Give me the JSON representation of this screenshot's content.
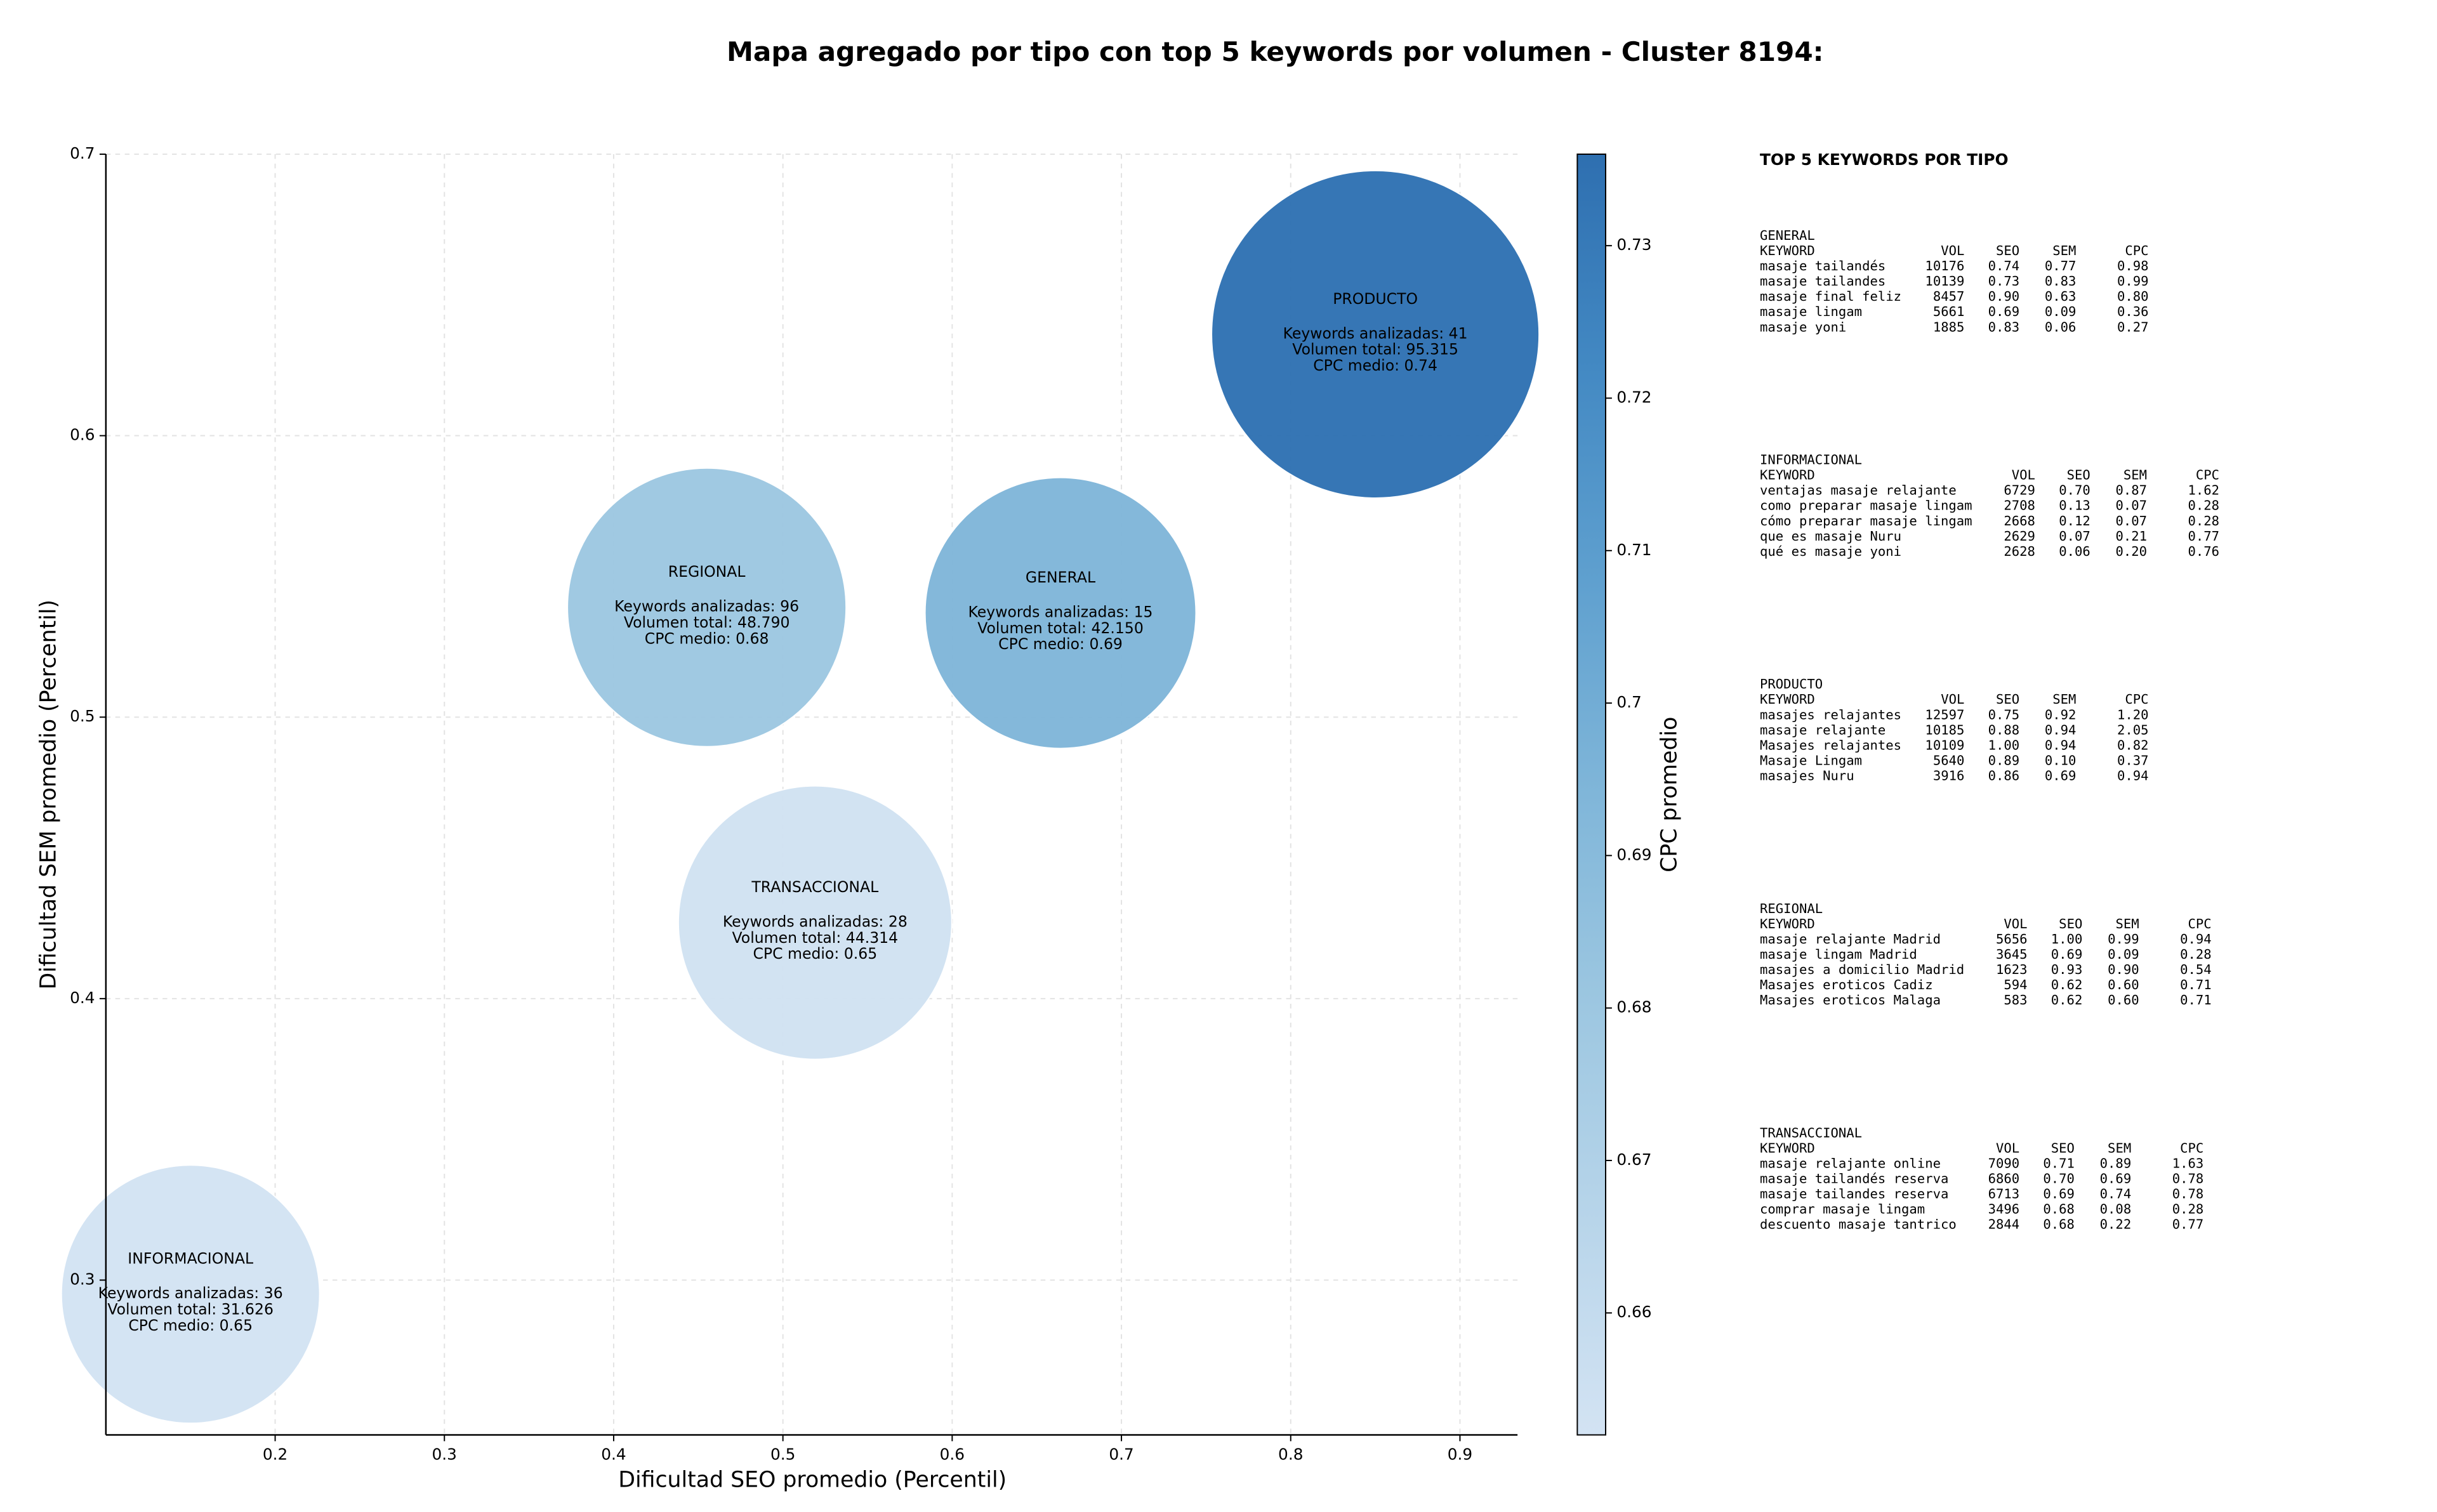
{
  "chart_data": {
    "type": "bubble",
    "title": "Mapa agregado por tipo con top 5 keywords por volumen - Cluster 8194:",
    "x_label": "Dificultad SEO promedio (Percentil)",
    "y_label": "Dificultad SEM promedio (Percentil)",
    "xlim": [
      0.1,
      0.934
    ],
    "ylim": [
      0.245,
      0.7
    ],
    "xticks": [
      0.2,
      0.3,
      0.4,
      0.5,
      0.6,
      0.7,
      0.8,
      0.9
    ],
    "yticks": [
      0.3,
      0.4,
      0.5,
      0.6,
      0.7
    ],
    "grid": true,
    "points": [
      {
        "name": "INFORMACIONAL",
        "x": 0.15,
        "y": 0.295,
        "volume": 31626,
        "color": "#d3e3f3",
        "lines": [
          "Keywords analizadas: 36",
          "Volumen total: 31.626",
          "CPC medio: 0.65"
        ]
      },
      {
        "name": "TRANSACCIONAL",
        "x": 0.519,
        "y": 0.427,
        "volume": 44314,
        "color": "#d1e2f2",
        "lines": [
          "Keywords analizadas: 28",
          "Volumen total: 44.314",
          "CPC medio: 0.65"
        ]
      },
      {
        "name": "REGIONAL",
        "x": 0.455,
        "y": 0.539,
        "volume": 48790,
        "color": "#9dc7e1",
        "lines": [
          "Keywords analizadas: 96",
          "Volumen total: 48.790",
          "CPC medio: 0.68"
        ]
      },
      {
        "name": "GENERAL",
        "x": 0.664,
        "y": 0.537,
        "volume": 42150,
        "color": "#80b6d9",
        "lines": [
          "Keywords analizadas: 15",
          "Volumen total: 42.150",
          "CPC medio: 0.69"
        ]
      },
      {
        "name": "PRODUCTO",
        "x": 0.85,
        "y": 0.636,
        "volume": 95315,
        "color": "#2f72b3",
        "lines": [
          "Keywords analizadas: 41",
          "Volumen total: 95.315",
          "CPC medio: 0.74"
        ]
      }
    ],
    "colorbar": {
      "label": "CPC promedio",
      "lim": [
        0.652,
        0.736
      ],
      "ticks": [
        0.66,
        0.67,
        0.68,
        0.69,
        0.7,
        0.71,
        0.72,
        0.73
      ],
      "colors": [
        "#d3e3f3",
        "#b8d5ea",
        "#9dc7e1",
        "#80b6d9",
        "#5fa0cf",
        "#4389c3",
        "#2e6fb0"
      ]
    }
  },
  "panel": {
    "title": "TOP 5 KEYWORDS POR TIPO",
    "columns": [
      "KEYWORD",
      "VOL",
      "SEO",
      "SEM",
      "CPC"
    ],
    "tables": [
      {
        "title": "GENERAL",
        "rows": [
          [
            "masaje tailandés",
            "10176",
            "0.74",
            "0.77",
            "0.98"
          ],
          [
            "masaje tailandes",
            "10139",
            "0.73",
            "0.83",
            "0.99"
          ],
          [
            "masaje final feliz",
            "8457",
            "0.90",
            "0.63",
            "0.80"
          ],
          [
            "masaje lingam",
            "5661",
            "0.69",
            "0.09",
            "0.36"
          ],
          [
            "masaje yoni",
            "1885",
            "0.83",
            "0.06",
            "0.27"
          ]
        ]
      },
      {
        "title": "INFORMACIONAL",
        "rows": [
          [
            "ventajas masaje relajante",
            "6729",
            "0.70",
            "0.87",
            "1.62"
          ],
          [
            "como preparar masaje lingam",
            "2708",
            "0.13",
            "0.07",
            "0.28"
          ],
          [
            "cómo preparar masaje lingam",
            "2668",
            "0.12",
            "0.07",
            "0.28"
          ],
          [
            "que es masaje Nuru",
            "2629",
            "0.07",
            "0.21",
            "0.77"
          ],
          [
            "qué es masaje yoni",
            "2628",
            "0.06",
            "0.20",
            "0.76"
          ]
        ]
      },
      {
        "title": "PRODUCTO",
        "rows": [
          [
            "masajes relajantes",
            "12597",
            "0.75",
            "0.92",
            "1.20"
          ],
          [
            "masaje relajante",
            "10185",
            "0.88",
            "0.94",
            "2.05"
          ],
          [
            "Masajes relajantes",
            "10109",
            "1.00",
            "0.94",
            "0.82"
          ],
          [
            "Masaje Lingam",
            "5640",
            "0.89",
            "0.10",
            "0.37"
          ],
          [
            "masajes Nuru",
            "3916",
            "0.86",
            "0.69",
            "0.94"
          ]
        ]
      },
      {
        "title": "REGIONAL",
        "rows": [
          [
            "masaje relajante Madrid",
            "5656",
            "1.00",
            "0.99",
            "0.94"
          ],
          [
            "masaje lingam Madrid",
            "3645",
            "0.69",
            "0.09",
            "0.28"
          ],
          [
            "masajes a domicilio Madrid",
            "1623",
            "0.93",
            "0.90",
            "0.54"
          ],
          [
            "Masajes eroticos Cadiz",
            "594",
            "0.62",
            "0.60",
            "0.71"
          ],
          [
            "Masajes eroticos Malaga",
            "583",
            "0.62",
            "0.60",
            "0.71"
          ]
        ]
      },
      {
        "title": "TRANSACCIONAL",
        "rows": [
          [
            "masaje relajante online",
            "7090",
            "0.71",
            "0.89",
            "1.63"
          ],
          [
            "masaje tailandés reserva",
            "6860",
            "0.70",
            "0.69",
            "0.78"
          ],
          [
            "masaje tailandes reserva",
            "6713",
            "0.69",
            "0.74",
            "0.78"
          ],
          [
            "comprar masaje lingam",
            "3496",
            "0.68",
            "0.08",
            "0.28"
          ],
          [
            "descuento masaje tantrico",
            "2844",
            "0.68",
            "0.22",
            "0.77"
          ]
        ]
      }
    ]
  }
}
